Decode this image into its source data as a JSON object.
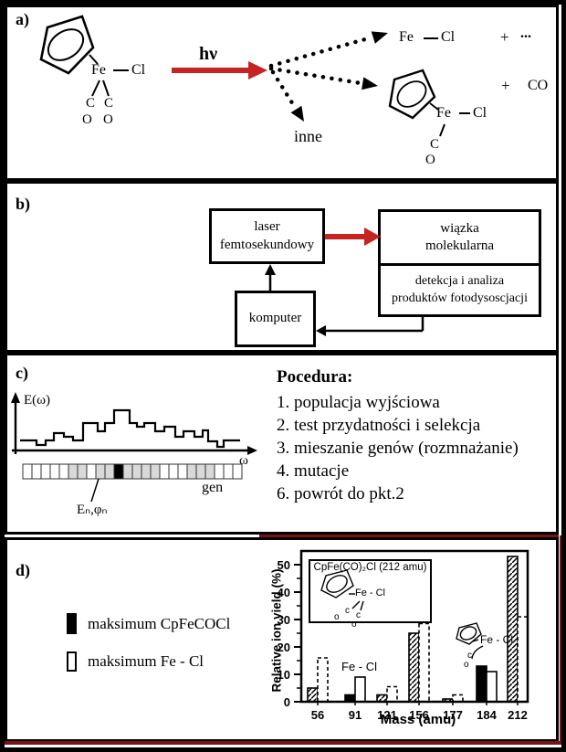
{
  "panel_a": {
    "label": "a)",
    "hv": "hν",
    "reactant": {
      "fe": "Fe",
      "cl": "Cl",
      "c1": "C",
      "c2": "C",
      "o1": "O",
      "o2": "O"
    },
    "product1": {
      "fe": "Fe",
      "cl": "Cl",
      "plus": "+",
      "more": "..."
    },
    "product2": {
      "fe": "Fe",
      "cl": "Cl",
      "c": "C",
      "o": "O",
      "plus": "+",
      "co": "CO"
    },
    "other_label": "inne"
  },
  "panel_b": {
    "label": "b)",
    "laser_box": {
      "line1": "laser",
      "line2": "femtosekundowy"
    },
    "beam_box": {
      "line1": "wiązka",
      "line2": "molekularna"
    },
    "detection_box": {
      "line1": "detekcja i analiza",
      "line2": "produktów fotodysoscjacji"
    },
    "computer_box": {
      "line1": "komputer"
    }
  },
  "panel_c": {
    "label": "c)",
    "y_axis_label": "E(ω)",
    "x_axis_label": "ω",
    "gene_label": "gen",
    "gene_pointer_label": "Eₙ,φₙ",
    "gene_cells": [
      "w",
      "w",
      "w",
      "w",
      "w",
      "g",
      "g",
      "w",
      "g",
      "g",
      "k",
      "g",
      "g",
      "g",
      "g",
      "w",
      "w",
      "w",
      "g",
      "g",
      "g",
      "w",
      "w",
      "w"
    ],
    "e_omega_steps": [
      [
        22,
        482
      ],
      [
        40,
        487
      ],
      [
        50,
        482
      ],
      [
        59,
        474
      ],
      [
        70,
        478
      ],
      [
        80,
        482
      ],
      [
        91,
        463
      ],
      [
        107,
        472
      ],
      [
        115,
        463
      ],
      [
        125,
        449
      ],
      [
        142,
        463
      ],
      [
        150,
        467
      ],
      [
        158,
        463
      ],
      [
        170,
        472
      ],
      [
        180,
        467
      ],
      [
        192,
        478
      ],
      [
        201,
        472
      ],
      [
        213,
        478
      ],
      [
        222,
        471
      ],
      [
        228,
        483
      ],
      [
        238,
        489
      ],
      [
        245,
        482
      ],
      [
        263,
        482
      ]
    ],
    "procedure": {
      "title": "Pocedura:",
      "items": [
        "1. populacja wyjściowa",
        "2. test przydatności i selekcja",
        "3. mieszanie genów (rozmnażanie)",
        "4. mutacje",
        "6. powrót do pkt.2"
      ]
    }
  },
  "panel_d": {
    "label": "d)",
    "legend": [
      {
        "swatch": "black",
        "label": "maksimum CpFeCOCl"
      },
      {
        "swatch": "open",
        "label": "maksimum Fe - Cl"
      }
    ],
    "inset": {
      "title": "CpFe(CO)₂Cl (212 amu)",
      "label": "Fe - Cl",
      "c1": "c",
      "c2": "c",
      "o1": "o",
      "o2": "o"
    },
    "annotation_fecl": "Fe - Cl",
    "structure184": {
      "label": "Fe - Cl",
      "c": "c",
      "o": "o"
    }
  },
  "chart_data": {
    "type": "bar",
    "title": "CpFe(CO)₂Cl (212 amu)",
    "xlabel": "Mass (amu)",
    "ylabel": "Relative ion yield (%)",
    "ylim": [
      0,
      55
    ],
    "yticks": [
      0,
      10,
      20,
      30,
      40,
      50
    ],
    "grid": false,
    "legend_position": "outside-left",
    "categories": [
      "56",
      "91",
      "121",
      "156",
      "177",
      "184",
      "212"
    ],
    "series": [
      {
        "name": "maksimum CpFeCOCl",
        "styles": [
          "hatched",
          "black",
          "hatched",
          "hatched",
          "hatched",
          "black",
          "hatched"
        ],
        "values": [
          5,
          2.5,
          2.5,
          25,
          1,
          13,
          53
        ]
      },
      {
        "name": "maksimum Fe - Cl",
        "styles": [
          "dashed",
          "white",
          "dashed",
          "dashed",
          "dashed",
          "white",
          "dashed"
        ],
        "values": [
          16,
          9,
          5.5,
          28.5,
          2.5,
          11,
          31
        ]
      }
    ]
  },
  "colors": {
    "accent_red": "#c62421",
    "maroon": "#7a1113",
    "grey_cell": "#d9d9d9"
  }
}
